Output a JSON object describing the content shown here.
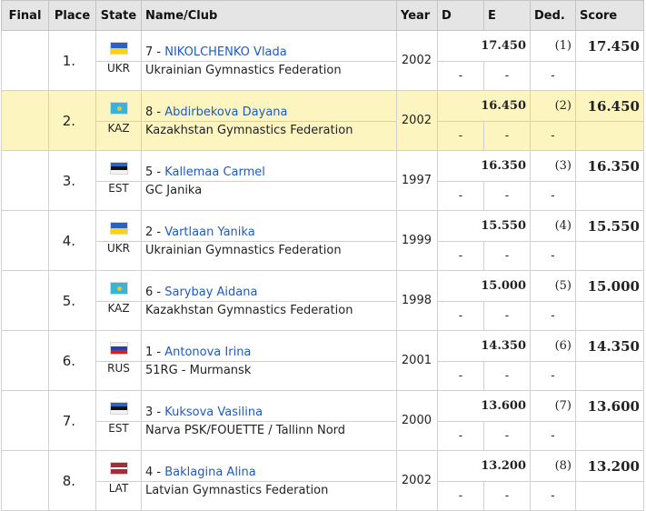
{
  "headers": {
    "final": "Final",
    "place": "Place",
    "state": "State",
    "name_club": "Name/Club",
    "year": "Year",
    "d": "D",
    "e": "E",
    "ded": "Ded.",
    "score": "Score"
  },
  "rows": [
    {
      "place": "1.",
      "flag": "ukr-flag-icon",
      "country": "UKR",
      "bib": "7 - ",
      "name": "NIKOLCHENKO Vlada",
      "club": "Ukrainian Gymnastics Federation",
      "year": "2002",
      "de_total": "17.450",
      "ded_rank": "(1)",
      "score": "17.450",
      "d": "-",
      "e": "-",
      "ded": "-",
      "highlight": false
    },
    {
      "place": "2.",
      "flag": "kaz-flag-icon",
      "country": "KAZ",
      "bib": "8 - ",
      "name": "Abdirbekova Dayana",
      "club": "Kazakhstan Gymnastics Federation",
      "year": "2002",
      "de_total": "16.450",
      "ded_rank": "(2)",
      "score": "16.450",
      "d": "-",
      "e": "-",
      "ded": "-",
      "highlight": true
    },
    {
      "place": "3.",
      "flag": "est-flag-icon",
      "country": "EST",
      "bib": "5 - ",
      "name": "Kallemaa Carmel",
      "club": "GC Janika",
      "year": "1997",
      "de_total": "16.350",
      "ded_rank": "(3)",
      "score": "16.350",
      "d": "-",
      "e": "-",
      "ded": "-",
      "highlight": false
    },
    {
      "place": "4.",
      "flag": "ukr-flag-icon",
      "country": "UKR",
      "bib": "2 - ",
      "name": "Vartlaan Yanika",
      "club": "Ukrainian Gymnastics Federation",
      "year": "1999",
      "de_total": "15.550",
      "ded_rank": "(4)",
      "score": "15.550",
      "d": "-",
      "e": "-",
      "ded": "-",
      "highlight": false
    },
    {
      "place": "5.",
      "flag": "kaz-flag-icon",
      "country": "KAZ",
      "bib": "6 - ",
      "name": "Sarybay Aidana",
      "club": "Kazakhstan Gymnastics Federation",
      "year": "1998",
      "de_total": "15.000",
      "ded_rank": "(5)",
      "score": "15.000",
      "d": "-",
      "e": "-",
      "ded": "-",
      "highlight": false
    },
    {
      "place": "6.",
      "flag": "rus-flag-icon",
      "country": "RUS",
      "bib": "1 - ",
      "name": "Antonova Irina",
      "club": "51RG - Murmansk",
      "year": "2001",
      "de_total": "14.350",
      "ded_rank": "(6)",
      "score": "14.350",
      "d": "-",
      "e": "-",
      "ded": "-",
      "highlight": false
    },
    {
      "place": "7.",
      "flag": "est-flag-icon",
      "country": "EST",
      "bib": "3 - ",
      "name": "Kuksova Vasilina",
      "club": "Narva PSK/FOUETTE / Tallinn Nord",
      "year": "2000",
      "de_total": "13.600",
      "ded_rank": "(7)",
      "score": "13.600",
      "d": "-",
      "e": "-",
      "ded": "-",
      "highlight": false
    },
    {
      "place": "8.",
      "flag": "lat-flag-icon",
      "country": "LAT",
      "bib": "4 - ",
      "name": "Baklagina Alina",
      "club": "Latvian Gymnastics Federation",
      "year": "2002",
      "de_total": "13.200",
      "ded_rank": "(8)",
      "score": "13.200",
      "d": "-",
      "e": "-",
      "ded": "-",
      "highlight": false
    }
  ],
  "colors": {
    "header_bg": "#e5e5e5",
    "highlight_bg": "#fcf5c0",
    "link": "#1f5bbf"
  }
}
